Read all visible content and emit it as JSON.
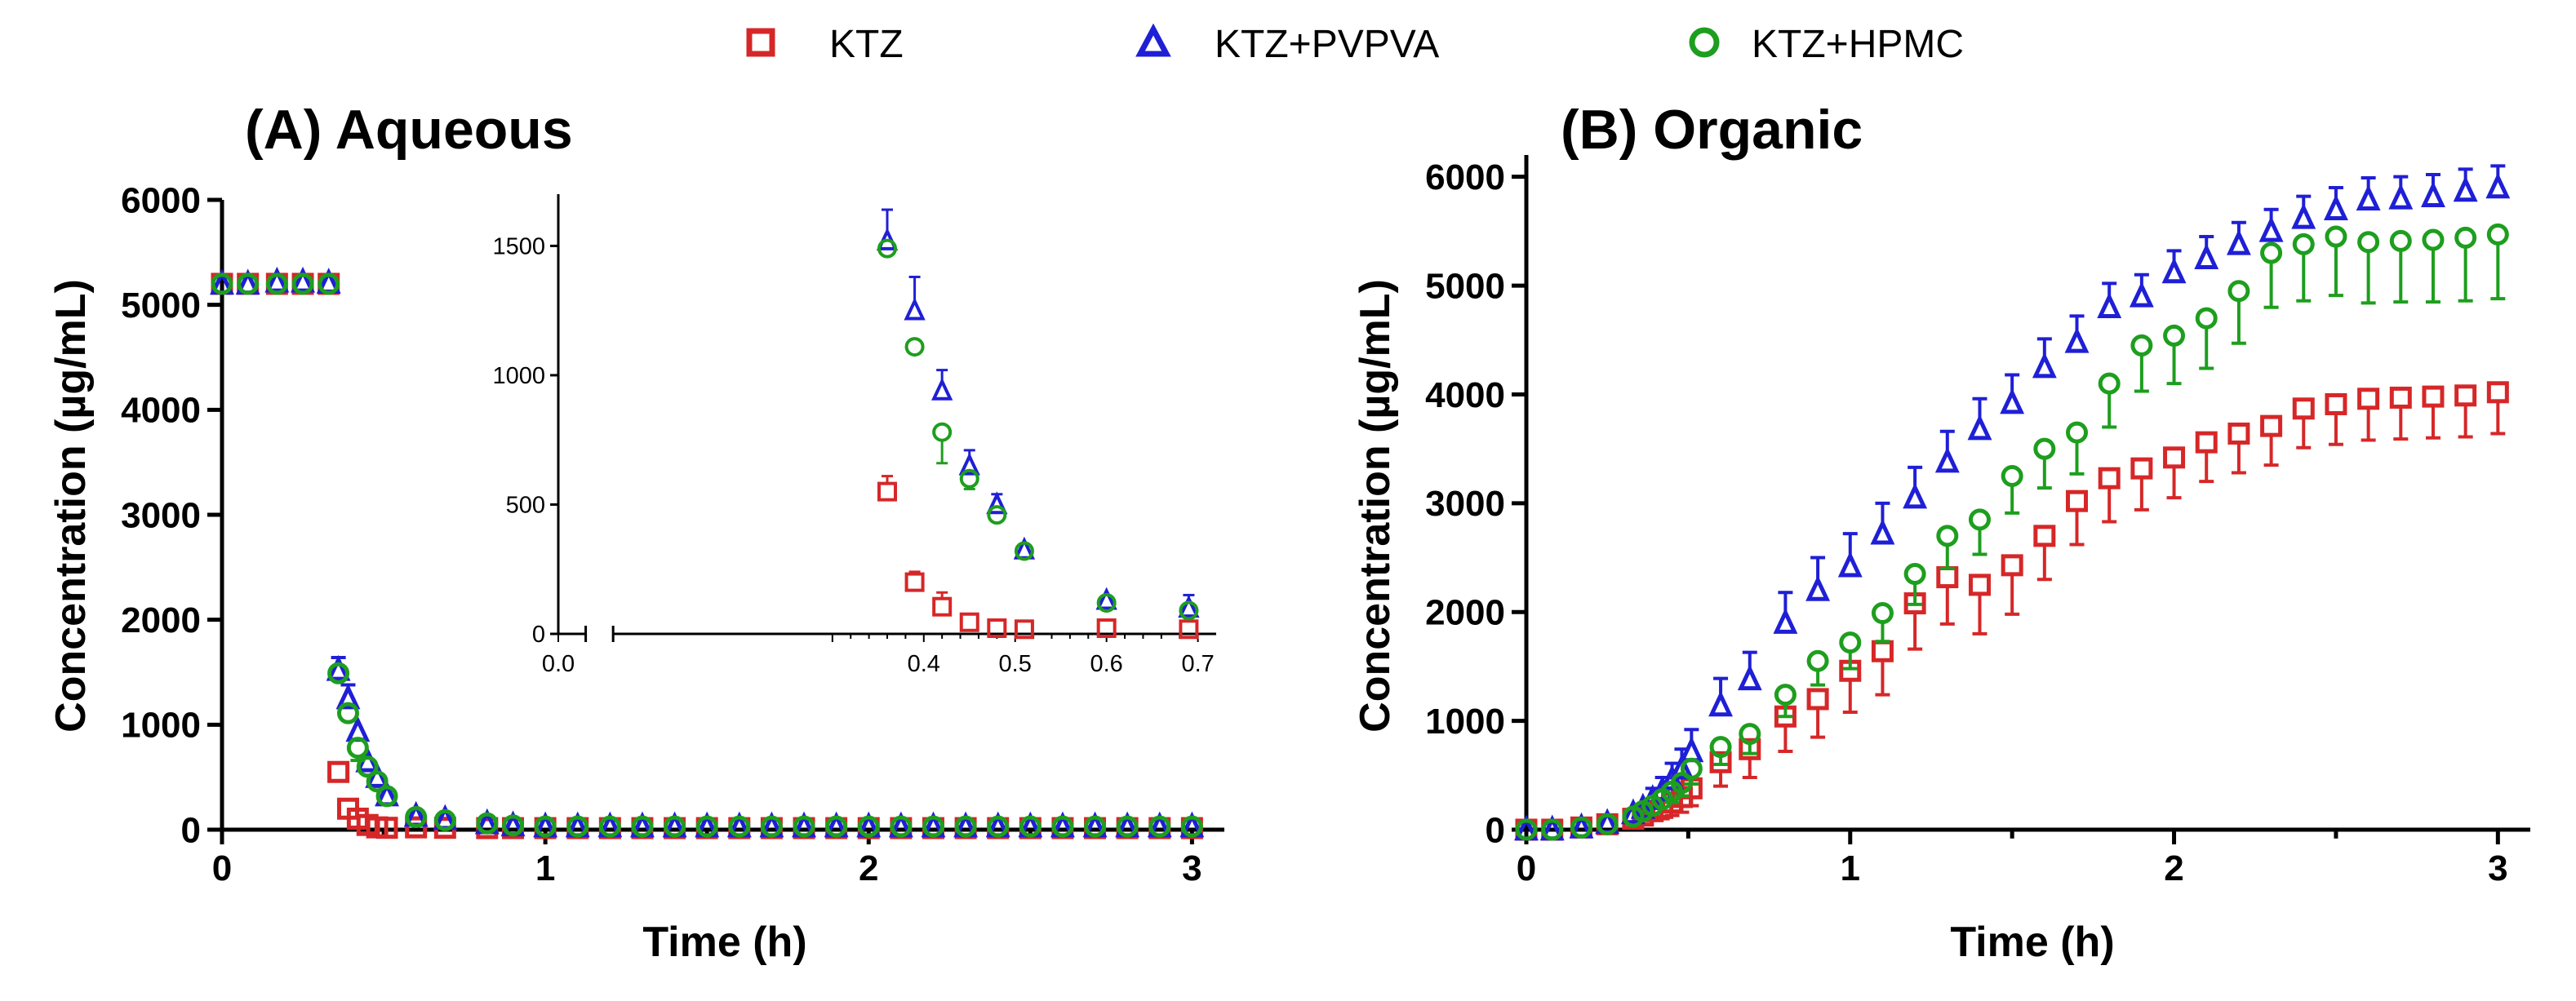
{
  "legend": {
    "entries": [
      {
        "name": "KTZ",
        "marker": "square",
        "color": "#d62728"
      },
      {
        "name": "KTZ+PVPVA",
        "marker": "triangle",
        "color": "#1f1fd6"
      },
      {
        "name": "KTZ+HPMC",
        "marker": "circle",
        "color": "#1e9e1e"
      }
    ]
  },
  "chart_data": [
    {
      "type": "scatter",
      "title": "(A) Aqueous",
      "xlabel": "Time (h)",
      "ylabel": "Concentration (µg/mL)",
      "xlim": [
        0,
        3.1
      ],
      "ylim": [
        0,
        6000
      ],
      "xticks": [
        0,
        1,
        2,
        3
      ],
      "yticks": [
        0,
        1000,
        2000,
        3000,
        4000,
        5000,
        6000
      ],
      "series": [
        {
          "name": "KTZ",
          "x": [
            0.0,
            0.08,
            0.17,
            0.25,
            0.33,
            0.36,
            0.39,
            0.42,
            0.45,
            0.48,
            0.51,
            0.6,
            0.69,
            0.82,
            0.9,
            1.0,
            1.1,
            1.2,
            1.3,
            1.4,
            1.5,
            1.6,
            1.7,
            1.8,
            1.9,
            2.0,
            2.1,
            2.2,
            2.3,
            2.4,
            2.5,
            2.6,
            2.7,
            2.8,
            2.9,
            3.0
          ],
          "y": [
            5200,
            5200,
            5200,
            5200,
            5200,
            550,
            200,
            105,
            45,
            22,
            18,
            22,
            18,
            15,
            15,
            15,
            15,
            15,
            15,
            15,
            15,
            15,
            15,
            15,
            15,
            15,
            15,
            15,
            15,
            15,
            15,
            15,
            15,
            15,
            15,
            15
          ],
          "err": [
            40,
            40,
            40,
            40,
            40,
            60,
            40,
            55,
            10,
            8,
            5,
            5,
            5,
            5,
            5,
            5,
            5,
            5,
            5,
            5,
            5,
            5,
            5,
            5,
            5,
            5,
            5,
            5,
            5,
            5,
            5,
            5,
            5,
            5,
            5,
            5
          ]
        },
        {
          "name": "KTZ+PVPVA",
          "x": [
            0.0,
            0.08,
            0.17,
            0.25,
            0.33,
            0.36,
            0.39,
            0.42,
            0.45,
            0.48,
            0.51,
            0.6,
            0.69,
            0.82,
            0.9,
            1.0,
            1.1,
            1.2,
            1.3,
            1.4,
            1.5,
            1.6,
            1.7,
            1.8,
            1.9,
            2.0,
            2.1,
            2.2,
            2.3,
            2.4,
            2.5,
            2.6,
            2.7,
            2.8,
            2.9,
            3.0
          ],
          "y": [
            5200,
            5200,
            5220,
            5220,
            5210,
            1520,
            1250,
            940,
            650,
            500,
            325,
            130,
            100,
            60,
            40,
            30,
            30,
            30,
            30,
            30,
            30,
            30,
            30,
            30,
            30,
            30,
            30,
            30,
            30,
            30,
            30,
            30,
            30,
            30,
            30,
            30
          ],
          "err": [
            40,
            40,
            40,
            40,
            40,
            120,
            130,
            80,
            60,
            40,
            30,
            20,
            50,
            10,
            8,
            5,
            5,
            5,
            5,
            5,
            5,
            5,
            5,
            5,
            5,
            5,
            5,
            5,
            5,
            5,
            5,
            5,
            5,
            5,
            5,
            5
          ]
        },
        {
          "name": "KTZ+HPMC",
          "x": [
            0.0,
            0.08,
            0.17,
            0.25,
            0.33,
            0.36,
            0.39,
            0.42,
            0.45,
            0.48,
            0.51,
            0.6,
            0.69,
            0.82,
            0.9,
            1.0,
            1.1,
            1.2,
            1.3,
            1.4,
            1.5,
            1.6,
            1.7,
            1.8,
            1.9,
            2.0,
            2.1,
            2.2,
            2.3,
            2.4,
            2.5,
            2.6,
            2.7,
            2.8,
            2.9,
            3.0
          ],
          "y": [
            5200,
            5200,
            5200,
            5200,
            5200,
            1490,
            1110,
            780,
            600,
            460,
            320,
            120,
            90,
            60,
            40,
            30,
            30,
            30,
            30,
            30,
            30,
            30,
            30,
            30,
            30,
            30,
            30,
            30,
            30,
            30,
            30,
            30,
            30,
            30,
            30,
            30
          ],
          "err": [
            40,
            40,
            40,
            40,
            40,
            30,
            20,
            120,
            40,
            20,
            20,
            15,
            15,
            10,
            8,
            5,
            5,
            5,
            5,
            5,
            5,
            5,
            5,
            5,
            5,
            5,
            5,
            5,
            5,
            5,
            5,
            5,
            5,
            5,
            5,
            5
          ]
        }
      ],
      "inset": {
        "xlim": [
          0.0,
          0.72
        ],
        "ylim": [
          0,
          1700
        ],
        "xticks": [
          0.0,
          0.1,
          0.2,
          0.3,
          0.4,
          0.5,
          0.6,
          0.7
        ],
        "xtick_labels": [
          "0.0",
          "0.4",
          "0.5",
          "0.6",
          "0.7"
        ],
        "xtick_label_values": [
          0.0,
          0.4,
          0.5,
          0.6,
          0.7
        ],
        "yticks": [
          0,
          500,
          1000,
          1500
        ],
        "axis_break": true,
        "series": [
          {
            "name": "KTZ",
            "x": [
              0.36,
              0.39,
              0.42,
              0.45,
              0.48,
              0.51,
              0.6,
              0.69
            ],
            "y": [
              550,
              200,
              105,
              45,
              22,
              18,
              22,
              18
            ],
            "err": [
              60,
              40,
              55,
              10,
              8,
              5,
              5,
              5
            ]
          },
          {
            "name": "KTZ+PVPVA",
            "x": [
              0.36,
              0.39,
              0.42,
              0.45,
              0.48,
              0.51,
              0.6,
              0.69
            ],
            "y": [
              1520,
              1250,
              940,
              650,
              500,
              325,
              130,
              100
            ],
            "err": [
              120,
              130,
              80,
              60,
              40,
              30,
              20,
              50
            ]
          },
          {
            "name": "KTZ+HPMC",
            "x": [
              0.36,
              0.39,
              0.42,
              0.45,
              0.48,
              0.51,
              0.6,
              0.69
            ],
            "y": [
              1490,
              1110,
              780,
              600,
              460,
              320,
              120,
              90
            ],
            "err": [
              30,
              20,
              120,
              40,
              20,
              20,
              15,
              15
            ]
          }
        ]
      }
    },
    {
      "type": "scatter",
      "title": "(B) Organic",
      "xlabel": "Time (h)",
      "ylabel": "Concentration (µg/mL)",
      "xlim": [
        0,
        3.1
      ],
      "ylim": [
        0,
        6200
      ],
      "xticks": [
        0,
        1,
        2,
        3
      ],
      "yticks": [
        0,
        1000,
        2000,
        3000,
        4000,
        5000,
        6000
      ],
      "series": [
        {
          "name": "KTZ",
          "x": [
            0.0,
            0.08,
            0.17,
            0.25,
            0.33,
            0.36,
            0.39,
            0.42,
            0.45,
            0.48,
            0.51,
            0.6,
            0.69,
            0.8,
            0.9,
            1.0,
            1.1,
            1.2,
            1.3,
            1.4,
            1.5,
            1.6,
            1.7,
            1.8,
            1.9,
            2.0,
            2.1,
            2.2,
            2.3,
            2.4,
            2.5,
            2.6,
            2.7,
            2.8,
            2.9,
            3.0
          ],
          "y": [
            0,
            0,
            20,
            50,
            100,
            130,
            170,
            200,
            250,
            300,
            380,
            620,
            740,
            1040,
            1200,
            1460,
            1640,
            2080,
            2320,
            2250,
            2430,
            2700,
            3020,
            3230,
            3320,
            3420,
            3560,
            3640,
            3710,
            3870,
            3910,
            3960,
            3970,
            3980,
            3990,
            4020
          ],
          "err": [
            30,
            30,
            30,
            40,
            60,
            70,
            80,
            100,
            120,
            140,
            160,
            220,
            260,
            320,
            350,
            380,
            400,
            420,
            430,
            450,
            450,
            400,
            400,
            400,
            380,
            370,
            360,
            360,
            360,
            360,
            370,
            380,
            380,
            380,
            380,
            380
          ]
        },
        {
          "name": "KTZ+PVPVA",
          "x": [
            0.0,
            0.08,
            0.17,
            0.25,
            0.33,
            0.36,
            0.39,
            0.42,
            0.45,
            0.48,
            0.51,
            0.6,
            0.69,
            0.8,
            0.9,
            1.0,
            1.1,
            1.2,
            1.3,
            1.4,
            1.5,
            1.6,
            1.7,
            1.8,
            1.9,
            2.0,
            2.1,
            2.2,
            2.3,
            2.4,
            2.5,
            2.6,
            2.7,
            2.8,
            2.9,
            3.0
          ],
          "y": [
            0,
            0,
            20,
            60,
            150,
            200,
            280,
            360,
            460,
            560,
            720,
            1140,
            1380,
            1900,
            2200,
            2420,
            2720,
            3050,
            3380,
            3680,
            3920,
            4250,
            4480,
            4800,
            4900,
            5120,
            5250,
            5380,
            5500,
            5620,
            5700,
            5790,
            5800,
            5820,
            5870,
            5900
          ],
          "err": [
            30,
            30,
            30,
            40,
            60,
            80,
            100,
            120,
            150,
            180,
            200,
            250,
            250,
            280,
            300,
            300,
            280,
            280,
            280,
            280,
            260,
            260,
            240,
            220,
            200,
            200,
            200,
            200,
            200,
            200,
            200,
            200,
            200,
            200,
            200,
            200
          ]
        },
        {
          "name": "KTZ+HPMC",
          "x": [
            0.0,
            0.08,
            0.17,
            0.25,
            0.33,
            0.36,
            0.39,
            0.42,
            0.45,
            0.48,
            0.51,
            0.6,
            0.69,
            0.8,
            0.9,
            1.0,
            1.1,
            1.2,
            1.3,
            1.4,
            1.5,
            1.6,
            1.7,
            1.8,
            1.9,
            2.0,
            2.1,
            2.2,
            2.3,
            2.4,
            2.5,
            2.6,
            2.7,
            2.8,
            2.9,
            3.0
          ],
          "y": [
            0,
            0,
            20,
            50,
            120,
            170,
            220,
            280,
            350,
            430,
            560,
            760,
            880,
            1240,
            1550,
            1720,
            1990,
            2350,
            2700,
            2850,
            3250,
            3500,
            3650,
            4100,
            4450,
            4540,
            4700,
            4950,
            5300,
            5380,
            5450,
            5400,
            5410,
            5420,
            5440,
            5470
          ],
          "err": [
            30,
            30,
            30,
            40,
            50,
            60,
            70,
            80,
            100,
            120,
            140,
            160,
            180,
            200,
            220,
            240,
            260,
            280,
            300,
            320,
            340,
            360,
            380,
            400,
            420,
            440,
            460,
            480,
            500,
            520,
            540,
            560,
            560,
            570,
            580,
            590
          ]
        }
      ]
    }
  ]
}
